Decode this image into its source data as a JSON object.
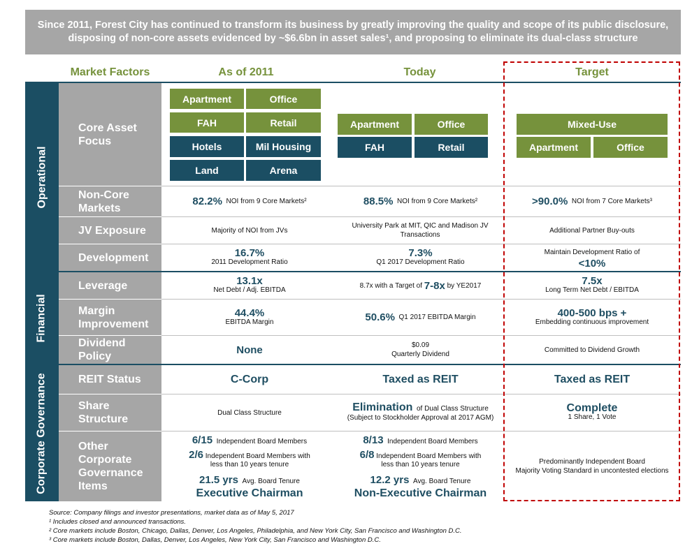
{
  "banner": "Since 2011, Forest City has continued to transform its business by greatly improving the quality and scope of its public disclosure, disposing of non-core assets evidenced by ~$6.6bn in asset sales¹, and proposing to eliminate its dual-class structure",
  "headers": {
    "factors": "Market Factors",
    "y2011": "As of 2011",
    "today": "Today",
    "target": "Target"
  },
  "sections": {
    "operational": "Operational",
    "financial": "Financial",
    "governance": "Corporate Governance"
  },
  "factors": {
    "core": "Core Asset Focus",
    "noncore": "Non-Core Markets",
    "jv": "JV Exposure",
    "dev": "Development",
    "leverage": "Leverage",
    "margin": "Margin Improvement",
    "dividend": "Dividend Policy",
    "reit": "REIT Status",
    "share": "Share Structure",
    "other": "Other Corporate Governance Items"
  },
  "core_assets": {
    "y2011": [
      "Apartment",
      "Office",
      "FAH",
      "Retail",
      "Hotels",
      "Mil Housing",
      "Land",
      "Arena"
    ],
    "today": [
      "Apartment",
      "Office",
      "FAH",
      "Retail"
    ],
    "target": [
      "Mixed-Use",
      "Apartment",
      "Office"
    ]
  },
  "noncore": {
    "y2011": {
      "value": "82.2%",
      "text": "NOI from 9 Core Markets²"
    },
    "today": {
      "value": "88.5%",
      "text": "NOI from 9 Core Markets²"
    },
    "target": {
      "value": ">90.0%",
      "text": "NOI from 7 Core Markets³"
    }
  },
  "jv": {
    "y2011": "Majority of NOI from JVs",
    "today": "University Park at MIT, QIC and Madison JV Transactions",
    "target": "Additional Partner Buy-outs"
  },
  "dev": {
    "y2011": {
      "value": "16.7%",
      "text": "2011 Development Ratio"
    },
    "today": {
      "value": "7.3%",
      "text": "Q1 2017 Development Ratio"
    },
    "target": {
      "text": "Maintain Development Ratio of",
      "value": "<10%"
    }
  },
  "leverage": {
    "y2011": {
      "value": "13.1x",
      "text": "Net Debt / Adj. EBITDA"
    },
    "today": {
      "pre": "8.7x with a Target of",
      "value": "7-8x",
      "post": "by YE2017"
    },
    "target": {
      "value": "7.5x",
      "text": "Long Term Net Debt / EBITDA"
    }
  },
  "margin": {
    "y2011": {
      "value": "44.4%",
      "text": "EBITDA Margin"
    },
    "today": {
      "value": "50.6%",
      "text": "Q1 2017 EBITDA Margin"
    },
    "target": {
      "value": "400-500 bps +",
      "text": "Embedding continuous improvement"
    }
  },
  "dividend": {
    "y2011": "None",
    "today": {
      "value": "$0.09",
      "text": "Quarterly Dividend"
    },
    "target": "Committed to Dividend Growth"
  },
  "reit": {
    "y2011": "C-Corp",
    "today": "Taxed as REIT",
    "target": "Taxed as REIT"
  },
  "share": {
    "y2011": "Dual Class Structure",
    "today": {
      "value": "Elimination",
      "text": "of Dual Class Structure",
      "note": "(Subject to Stockholder Approval at 2017 AGM)"
    },
    "target": {
      "value": "Complete",
      "text": "1 Share, 1 Vote"
    }
  },
  "other": {
    "y2011": {
      "b1": "6/15",
      "t1": "Independent Board Members",
      "b2": "2/6",
      "t2a": "Independent Board Members with",
      "t2b": "less than 10 years tenure",
      "b3": "21.5 yrs",
      "t3": "Avg. Board Tenure",
      "exec": "Executive Chairman"
    },
    "today": {
      "b1": "8/13",
      "t1": "Independent Board Members",
      "b2": "6/8",
      "t2a": "Independent Board Members with",
      "t2b": "less than 10 years tenure",
      "b3": "12.2 yrs",
      "t3": "Avg. Board Tenure",
      "exec": "Non-Executive Chairman"
    },
    "target": {
      "l1": "Predominantly Independent Board",
      "l2": "Majority Voting Standard in uncontested elections"
    }
  },
  "footnotes": [
    "Source: Company filings and investor presentations, market data as of May 5, 2017",
    "¹ Includes closed and announced transactions.",
    "² Core markets include Boston, Chicago, Dallas, Denver, Los Angeles, Philadelphia, and New York City, San Francisco and Washington D.C.",
    "³ Core markets include Boston, Dallas, Denver, Los Angeles, New York City, San Francisco and Washington D.C."
  ],
  "colors": {
    "navy": "#1b4e63",
    "green": "#76923c",
    "gray": "#a6a6a6",
    "red": "#c00000"
  }
}
